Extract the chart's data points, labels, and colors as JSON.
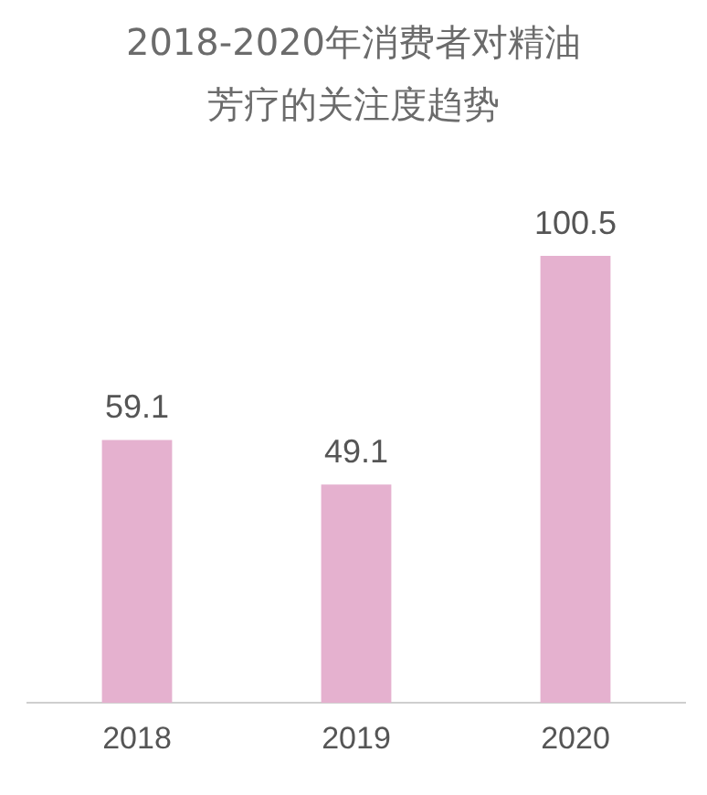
{
  "chart_data": {
    "type": "bar",
    "title": "2018-2020年消费者对精油芳疗的关注度趋势",
    "categories": [
      "2018",
      "2019",
      "2020"
    ],
    "values": [
      59.1,
      49.1,
      100.5
    ],
    "color": "#e5b1cf",
    "data_labels": true,
    "grid": false,
    "legend": false
  }
}
